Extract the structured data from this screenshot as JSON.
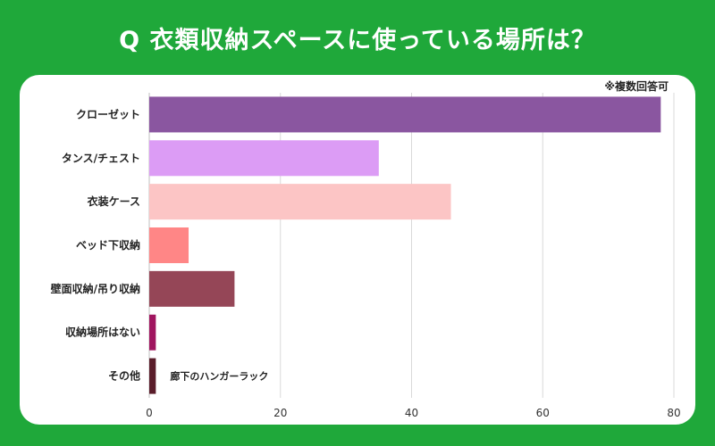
{
  "title": "Q 衣類収納スペースに使っている場所は？",
  "note": "※複数回答可",
  "colors": {
    "background": "#1fa83a",
    "panel": "#ffffff",
    "grid": "#d9d9d9",
    "bars": [
      "#8a56a0",
      "#dc9cf5",
      "#fcc5c5",
      "#ff8686",
      "#954657",
      "#a0155f",
      "#5a1d2a"
    ]
  },
  "chart_data": {
    "type": "bar",
    "orientation": "horizontal",
    "categories": [
      "クローゼット",
      "タンス/チェスト",
      "衣装ケース",
      "ベッド下収納",
      "壁面収納/吊り収納",
      "収納場所はない",
      "その他"
    ],
    "values": [
      78,
      35,
      46,
      6,
      13,
      1,
      1
    ],
    "xlim": [
      0,
      80
    ],
    "xticks": [
      0,
      20,
      40,
      60,
      80
    ],
    "grid": true,
    "annotations": [
      {
        "category": "その他",
        "text": "廊下のハンガーラック"
      }
    ]
  }
}
